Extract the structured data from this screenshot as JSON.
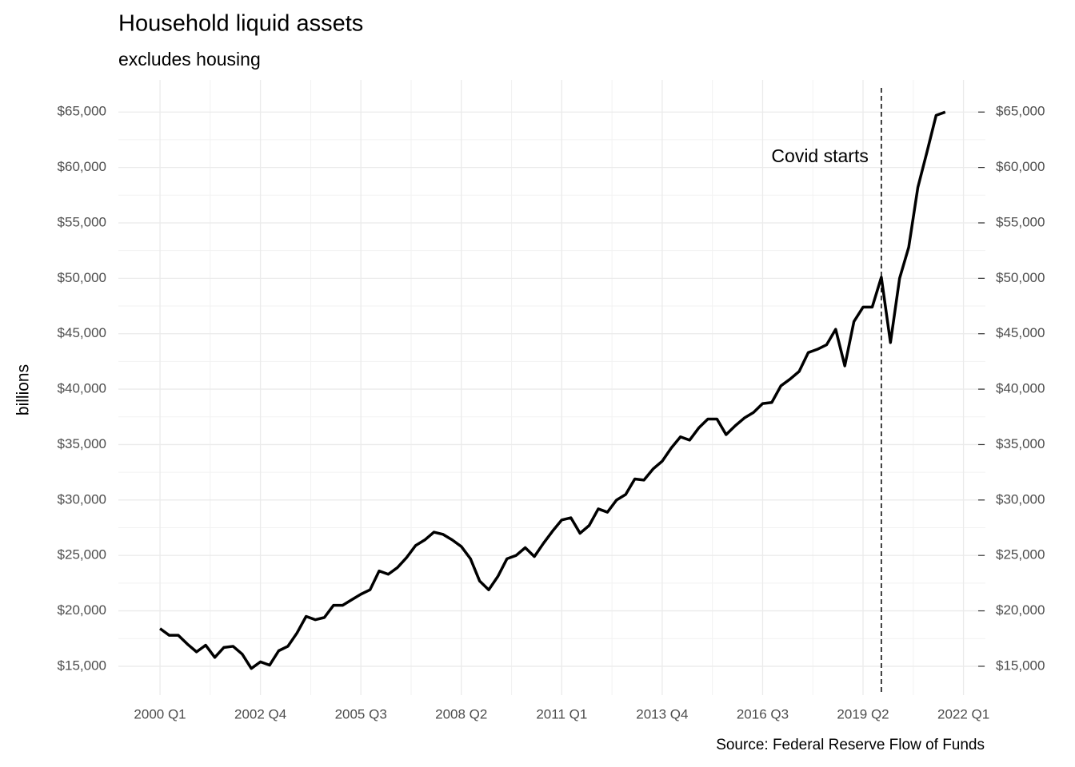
{
  "chart_data": {
    "type": "line",
    "title": "Household liquid assets",
    "subtitle": "excludes housing",
    "y_label": "billions",
    "caption": "Source: Federal Reserve Flow of Funds",
    "x": [
      2000,
      2000.25,
      2000.5,
      2000.75,
      2001,
      2001.25,
      2001.5,
      2001.75,
      2002,
      2002.25,
      2002.5,
      2002.75,
      2003,
      2003.25,
      2003.5,
      2003.75,
      2004,
      2004.25,
      2004.5,
      2004.75,
      2005,
      2005.25,
      2005.5,
      2005.75,
      2006,
      2006.25,
      2006.5,
      2006.75,
      2007,
      2007.25,
      2007.5,
      2007.75,
      2008,
      2008.25,
      2008.5,
      2008.75,
      2009,
      2009.25,
      2009.5,
      2009.75,
      2010,
      2010.25,
      2010.5,
      2010.75,
      2011,
      2011.25,
      2011.5,
      2011.75,
      2012,
      2012.25,
      2012.5,
      2012.75,
      2013,
      2013.25,
      2013.5,
      2013.75,
      2014,
      2014.25,
      2014.5,
      2014.75,
      2015,
      2015.25,
      2015.5,
      2015.75,
      2016,
      2016.25,
      2016.5,
      2016.75,
      2017,
      2017.25,
      2017.5,
      2017.75,
      2018,
      2018.25,
      2018.5,
      2018.75,
      2019,
      2019.25,
      2019.5,
      2019.75,
      2020,
      2020.25,
      2020.5,
      2020.75,
      2021,
      2021.25,
      2021.5
    ],
    "series": [
      {
        "name": "liquid assets",
        "color": "#000000",
        "values": [
          18400,
          17800,
          17800,
          17000,
          16300,
          16900,
          15800,
          16700,
          16800,
          16100,
          14800,
          15400,
          15100,
          16400,
          16800,
          18000,
          19500,
          19200,
          19400,
          20500,
          20500,
          21000,
          21500,
          21900,
          23600,
          23300,
          23900,
          24800,
          25900,
          26400,
          27100,
          26900,
          26400,
          25800,
          24700,
          22700,
          21900,
          23100,
          24700,
          25000,
          25700,
          24900,
          26100,
          27200,
          28200,
          28400,
          27000,
          27700,
          29200,
          28900,
          30000,
          30500,
          31900,
          31800,
          32800,
          33500,
          34700,
          35700,
          35400,
          36500,
          37300,
          37300,
          35900,
          36700,
          37400,
          37900,
          38700,
          38800,
          40300,
          40900,
          41600,
          43300,
          43600,
          44000,
          45400,
          42100,
          46100,
          47400,
          47400,
          50100,
          44200,
          50000,
          52800,
          58200,
          61400,
          64700,
          65000
        ]
      }
    ],
    "xlim": [
      1998.86,
      2022.6
    ],
    "xticks": [
      {
        "value": 2000,
        "label": "2000 Q1"
      },
      {
        "value": 2002.75,
        "label": "2002 Q4"
      },
      {
        "value": 2005.5,
        "label": "2005 Q3"
      },
      {
        "value": 2008.25,
        "label": "2008 Q2"
      },
      {
        "value": 2011,
        "label": "2011 Q1"
      },
      {
        "value": 2013.75,
        "label": "2013 Q4"
      },
      {
        "value": 2016.5,
        "label": "2016 Q3"
      },
      {
        "value": 2019.25,
        "label": "2019 Q2"
      },
      {
        "value": 2022,
        "label": "2022 Q1"
      }
    ],
    "ylim": [
      12400,
      67900
    ],
    "yticks": [
      {
        "value": 15000,
        "label": "$15,000"
      },
      {
        "value": 20000,
        "label": "$20,000"
      },
      {
        "value": 25000,
        "label": "$25,000"
      },
      {
        "value": 30000,
        "label": "$30,000"
      },
      {
        "value": 35000,
        "label": "$35,000"
      },
      {
        "value": 40000,
        "label": "$40,000"
      },
      {
        "value": 45000,
        "label": "$45,000"
      },
      {
        "value": 50000,
        "label": "$50,000"
      },
      {
        "value": 55000,
        "label": "$55,000"
      },
      {
        "value": 60000,
        "label": "$60,000"
      },
      {
        "value": 65000,
        "label": "$65,000"
      }
    ],
    "y2lim": [
      12400,
      67900
    ],
    "y2ticks": [
      {
        "value": 15000,
        "label": "$15,000"
      },
      {
        "value": 20000,
        "label": "$20,000"
      },
      {
        "value": 25000,
        "label": "$25,000"
      },
      {
        "value": 30000,
        "label": "$30,000"
      },
      {
        "value": 35000,
        "label": "$35,000"
      },
      {
        "value": 40000,
        "label": "$40,000"
      },
      {
        "value": 45000,
        "label": "$45,000"
      },
      {
        "value": 50000,
        "label": "$50,000"
      },
      {
        "value": 55000,
        "label": "$55,000"
      },
      {
        "value": 60000,
        "label": "$60,000"
      },
      {
        "value": 65000,
        "label": "$65,000"
      }
    ],
    "grid": true,
    "vline": {
      "x": 2019.75,
      "label": "Covid starts"
    }
  }
}
